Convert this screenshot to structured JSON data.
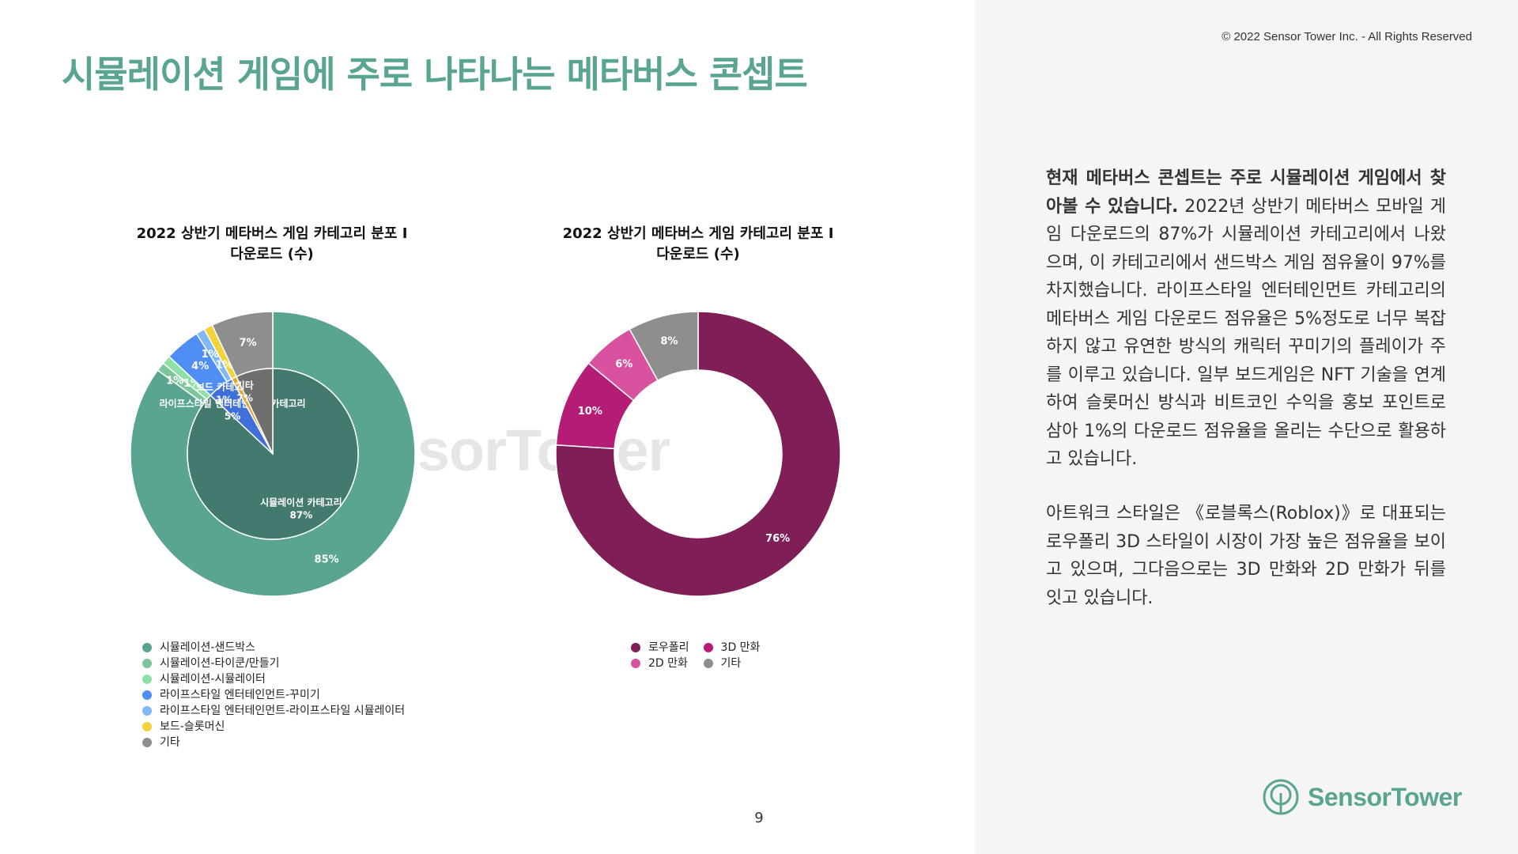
{
  "header": {
    "title": "시뮬레이션 게임에 주로 나타나는 메타버스 콘셉트",
    "copyright": "© 2022 Sensor Tower Inc. - All Rights Reserved"
  },
  "watermark": "SensorTower",
  "page_number": "9",
  "colors": {
    "accent": "#5aa592",
    "sandbox": "#5aa592",
    "tycoon": "#7cc79a",
    "simulator": "#8fe0a6",
    "decorate": "#4f8ef5",
    "life_sim": "#7fb8f5",
    "slot": "#f3d33c",
    "other": "#8e8e8e",
    "lowpoly": "#801e58",
    "comic3d": "#b51c76",
    "comic2d": "#d9529f"
  },
  "chart_data": [
    {
      "type": "pie",
      "title_lines": [
        "2022 상반기 메타버스 게임 카테고리 분포 I",
        "다운로드 (수)"
      ],
      "outer_ring": {
        "slices": [
          {
            "name": "시뮬레이션-샌드박스",
            "value": 85,
            "label": "85%",
            "color": "#5aa592"
          },
          {
            "name": "시뮬레이션-타이쿤/만들기",
            "value": 1,
            "label": "1%",
            "color": "#7cc79a"
          },
          {
            "name": "시뮬레이션-시뮬레이터",
            "value": 1,
            "label": "1%",
            "color": "#8fe0a6"
          },
          {
            "name": "라이프스타일 엔터테인먼트-꾸미기",
            "value": 4,
            "label": "4%",
            "color": "#4f8ef5"
          },
          {
            "name": "라이프스타일 엔터테인먼트-라이프스타일 시뮬레이터",
            "value": 1,
            "label": "1%",
            "color": "#7fb8f5"
          },
          {
            "name": "보드-슬롯머신",
            "value": 1,
            "label": "1%",
            "color": "#f3d33c"
          },
          {
            "name": "기타",
            "value": 7,
            "label": "7%",
            "color": "#8e8e8e"
          }
        ]
      },
      "inner_pie": {
        "slices": [
          {
            "name": "시뮬레이션 카테고리",
            "value": 87,
            "label": "87%",
            "color": "#437a70"
          },
          {
            "name": "라이프스타일 엔터테인먼트 카테고리",
            "value": 5,
            "label": "5%",
            "color": "#3f6fd9"
          },
          {
            "name": "보드 카테고리",
            "value": 1,
            "label": "1%",
            "color": "#e0a735"
          },
          {
            "name": "기타",
            "value": 7,
            "label": "7%",
            "color": "#6f6f6f"
          }
        ]
      },
      "legend": [
        {
          "label": "시뮬레이션-샌드박스",
          "color": "#5aa592"
        },
        {
          "label": "시뮬레이션-타이쿤/만들기",
          "color": "#7cc79a"
        },
        {
          "label": "시뮬레이션-시뮬레이터",
          "color": "#8fe0a6"
        },
        {
          "label": "라이프스타일 엔터테인먼트-꾸미기",
          "color": "#4f8ef5"
        },
        {
          "label": "라이프스타일 엔터테인먼트-라이프스타일 시뮬레이터",
          "color": "#7fb8f5"
        },
        {
          "label": "보드-슬롯머신",
          "color": "#f3d33c"
        },
        {
          "label": "기타",
          "color": "#8e8e8e"
        }
      ]
    },
    {
      "type": "pie",
      "variant": "donut",
      "title_lines": [
        "2022 상반기 메타버스 게임 카테고리 분포 I",
        "다운로드 (수)"
      ],
      "slices": [
        {
          "name": "로우폴리",
          "value": 76,
          "label": "76%",
          "color": "#801e58"
        },
        {
          "name": "3D 만화",
          "value": 10,
          "label": "10%",
          "color": "#b51c76"
        },
        {
          "name": "2D 만화",
          "value": 6,
          "label": "6%",
          "color": "#d9529f"
        },
        {
          "name": "기타",
          "value": 8,
          "label": "8%",
          "color": "#8e8e8e"
        }
      ],
      "legend": [
        {
          "label": "로우폴리",
          "color": "#801e58"
        },
        {
          "label": "3D 만화",
          "color": "#b51c76"
        },
        {
          "label": "2D 만화",
          "color": "#d9529f"
        },
        {
          "label": "기타",
          "color": "#8e8e8e"
        }
      ]
    }
  ],
  "sidebar": {
    "p1_bold": "현재 메타버스 콘셉트는 주로 시뮬레이션 게임에서 찾아볼 수 있습니다.",
    "p1_rest": " 2022년 상반기 메타버스 모바일 게임 다운로드의 87%가 시뮬레이션 카테고리에서 나왔으며, 이 카테고리에서 샌드박스 게임 점유율이 97%를 차지했습니다. 라이프스타일 엔터테인먼트 카테고리의 메타버스 게임 다운로드 점유율은 5%정도로 너무 복잡하지 않고 유연한 방식의 캐릭터 꾸미기의 플레이가 주를 이루고 있습니다. 일부 보드게임은 NFT 기술을 연계하여 슬롯머신 방식과 비트코인 수익을 홍보 포인트로 삼아 1%의 다운로드 점유율을 올리는 수단으로 활용하고 있습니다.",
    "p2": "아트워크 스타일은 《로블록스(Roblox)》로 대표되는 로우폴리 3D 스타일이 시장이 가장 높은 점유율을 보이고 있으며, 그다음으로는 3D 만화와 2D 만화가 뒤를 잇고 있습니다."
  },
  "logo": {
    "text": "SensorTower",
    "icon": "sensor-tower-logo-icon"
  }
}
